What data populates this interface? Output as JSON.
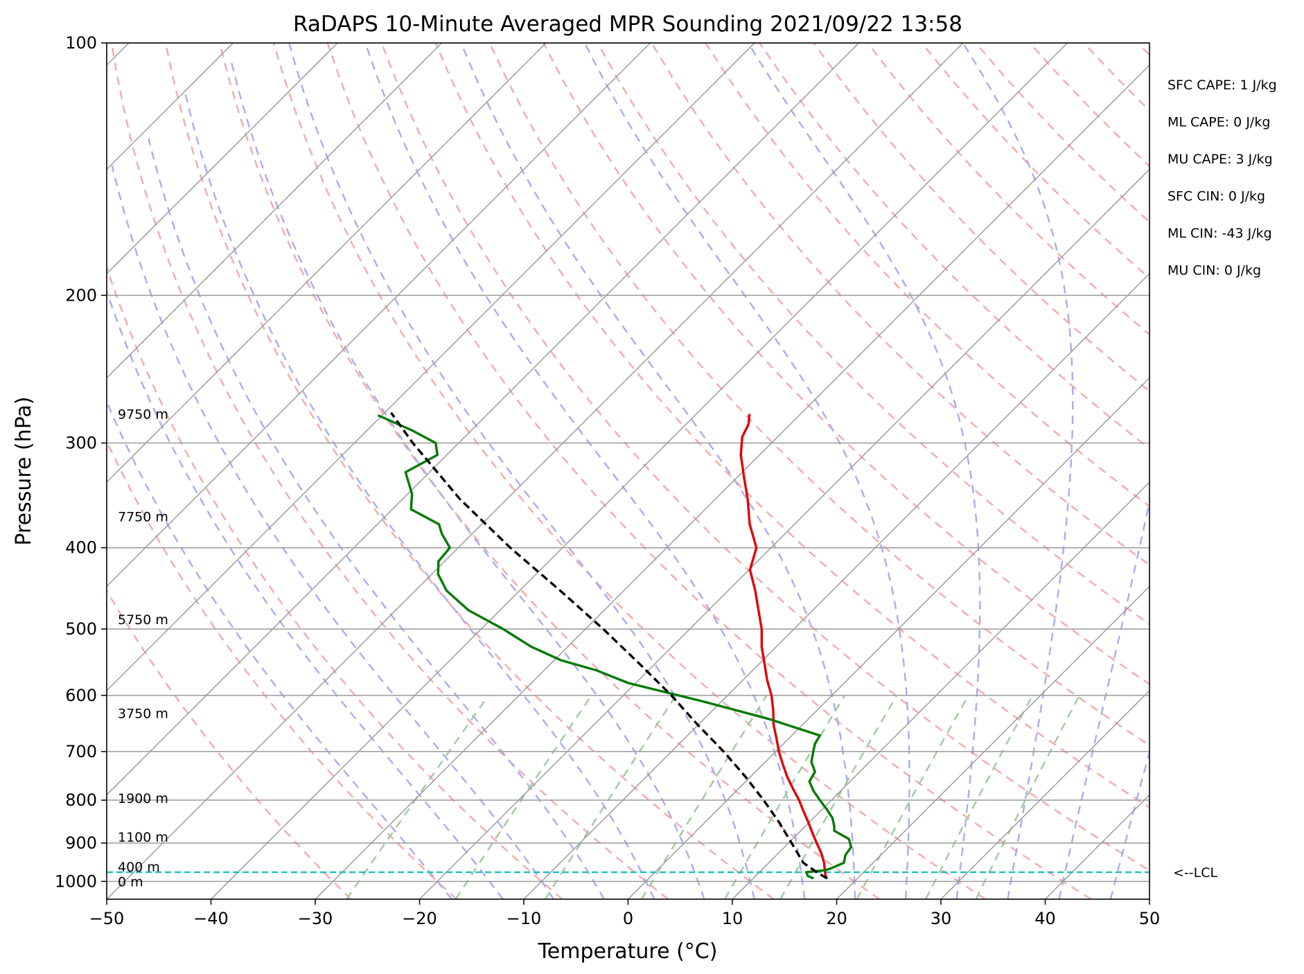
{
  "chart_data": {
    "type": "line",
    "title": "RaDAPS 10-Minute Averaged MPR Sounding 2021/09/22 13:58",
    "xlabel": "Temperature (°C)",
    "ylabel": "Pressure (hPa)",
    "xlim": [
      -50,
      50
    ],
    "ylim": [
      1050,
      100
    ],
    "y_scale": "log",
    "skew": 45,
    "grid": true,
    "x_ticks": [
      -50,
      -40,
      -30,
      -20,
      -10,
      0,
      10,
      20,
      30,
      40,
      50
    ],
    "x_tick_labels": [
      "−50",
      "−40",
      "−30",
      "−20",
      "−10",
      "0",
      "10",
      "20",
      "30",
      "40",
      "50"
    ],
    "y_ticks": [
      100,
      200,
      300,
      400,
      500,
      600,
      700,
      800,
      900,
      1000
    ],
    "y_tick_labels": [
      "100",
      "200",
      "300",
      "400",
      "500",
      "600",
      "700",
      "800",
      "900",
      "1000"
    ],
    "series": [
      {
        "role": "temperature",
        "color": "#e00000",
        "style": "solid",
        "p": [
          992,
          985,
          975,
          965,
          950,
          925,
          900,
          875,
          850,
          825,
          800,
          775,
          750,
          725,
          700,
          675,
          650,
          625,
          600,
          575,
          550,
          525,
          500,
          475,
          450,
          425,
          400,
          375,
          350,
          330,
          310,
          295,
          285,
          277
        ],
        "t": [
          17.1,
          16.7,
          16.3,
          15.9,
          15.3,
          14.1,
          12.7,
          11.3,
          9.9,
          8.4,
          6.9,
          5.2,
          3.5,
          1.9,
          0.3,
          -1.2,
          -2.8,
          -4.2,
          -5.8,
          -7.7,
          -9.5,
          -11.4,
          -13.1,
          -15.2,
          -17.4,
          -19.9,
          -21.4,
          -24.3,
          -26.9,
          -29.3,
          -31.8,
          -33.4,
          -34.0,
          -34.9
        ]
      },
      {
        "role": "dewpoint",
        "color": "#007a00",
        "style": "solid",
        "p": [
          992,
          985,
          975,
          970,
          965,
          950,
          930,
          910,
          890,
          870,
          860,
          840,
          820,
          800,
          780,
          760,
          740,
          720,
          700,
          685,
          670,
          640,
          610,
          580,
          560,
          545,
          525,
          500,
          475,
          450,
          430,
          415,
          400,
          385,
          375,
          360,
          345,
          325,
          310,
          300,
          290,
          278
        ],
        "t": [
          15.8,
          15.0,
          14.5,
          16.1,
          16.5,
          17.2,
          16.6,
          16.4,
          15.4,
          13.2,
          12.8,
          11.8,
          10.4,
          8.9,
          7.4,
          6.1,
          5.7,
          4.4,
          3.6,
          3.0,
          2.7,
          -3.8,
          -11.8,
          -20.7,
          -25.0,
          -29.3,
          -33.5,
          -37.9,
          -43.0,
          -47.0,
          -49.4,
          -50.6,
          -50.8,
          -52.9,
          -54.1,
          -58.2,
          -59.6,
          -62.3,
          -60.9,
          -62.2,
          -65.6,
          -70.4
        ]
      },
      {
        "role": "parcel",
        "color": "#000000",
        "style": "dashed",
        "p": [
          992,
          975,
          950,
          900,
          850,
          800,
          750,
          700,
          650,
          600,
          550,
          500,
          450,
          400,
          350,
          300,
          276
        ],
        "t": [
          17.1,
          15.5,
          13.3,
          10.3,
          7.1,
          3.5,
          -0.5,
          -5.0,
          -10.1,
          -15.4,
          -21.5,
          -28.3,
          -36.1,
          -45.0,
          -54.5,
          -64.4,
          -69.4
        ]
      }
    ],
    "lcl_pressure": 975,
    "lcl_label": "<--LCL",
    "height_labels": [
      {
        "text": "0 m",
        "p": 1000
      },
      {
        "text": "400 m",
        "p": 960
      },
      {
        "text": "1100 m",
        "p": 885
      },
      {
        "text": "1900 m",
        "p": 795
      },
      {
        "text": "3750 m",
        "p": 630
      },
      {
        "text": "5750 m",
        "p": 487
      },
      {
        "text": "7750 m",
        "p": 367
      },
      {
        "text": "9750 m",
        "p": 277
      }
    ],
    "stats": [
      "SFC CAPE: 1 J/kg",
      "ML CAPE: 0 J/kg",
      "MU CAPE: 3 J/kg",
      "SFC CIN: 0 J/kg",
      "ML CIN: -43 J/kg",
      "MU CIN: 0 J/kg"
    ]
  },
  "colors": {
    "temperature": "#e00000",
    "dewpoint": "#007a00",
    "parcel": "#000000",
    "dry_adiabat": "#f4aaaa",
    "moist_adiabat": "#aaaaf4",
    "mixing_ratio": "#9ccc9c",
    "isotherm": "#9a9a9a",
    "lcl_line": "#17bfbf"
  }
}
